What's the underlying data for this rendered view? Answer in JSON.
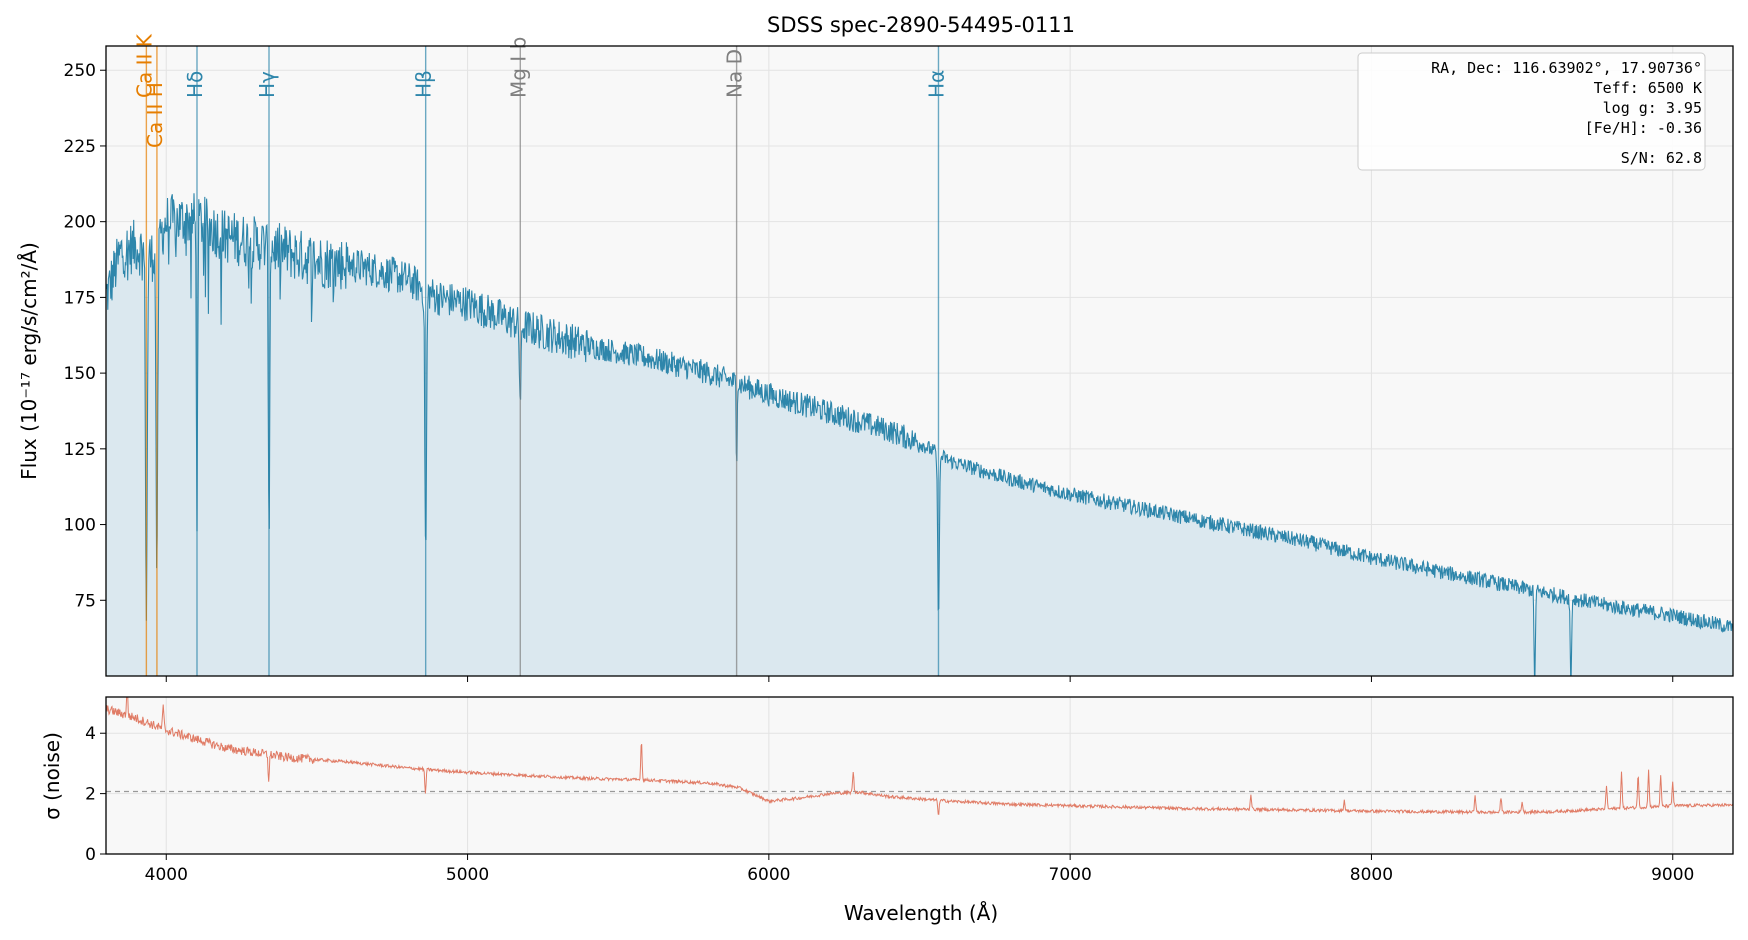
{
  "figure": {
    "title": "SDSS spec-2890-54495-0111",
    "xlabel": "Wavelength (Å)"
  },
  "info_box": {
    "lines": [
      "RA, Dec: 116.63902°, 17.90736°",
      "Teff: 6500 K",
      "log g: 3.95",
      "[Fe/H]: -0.36",
      "S/N: 62.8"
    ]
  },
  "colors": {
    "flux": "#2e86ab",
    "flux_fill": "#dbe8ef",
    "noise": "#e07b65",
    "panel_bg": "#f8f8f8",
    "balmer": "#2e86ab",
    "calcium": "#e67e00",
    "metal": "#7f7f7f"
  },
  "chart_data": [
    {
      "type": "line",
      "panel": "flux",
      "ylabel": "Flux (10⁻¹⁷ erg/s/cm²/Å)",
      "xlim": [
        3800,
        9200
      ],
      "ylim": [
        50,
        258
      ],
      "xticks": [
        4000,
        5000,
        6000,
        7000,
        8000,
        9000
      ],
      "yticks": [
        75,
        100,
        125,
        150,
        175,
        200,
        225,
        250
      ],
      "grid": true,
      "fill_under": true,
      "continuum_points": {
        "x": [
          3800,
          3850,
          3900,
          3950,
          4000,
          4100,
          4200,
          4300,
          4400,
          4500,
          4600,
          4700,
          4800,
          4900,
          5000,
          5200,
          5400,
          5600,
          5800,
          6000,
          6200,
          6400,
          6500,
          6600,
          6800,
          7000,
          7200,
          7400,
          7600,
          7800,
          8000,
          8200,
          8400,
          8600,
          8800,
          9000,
          9200
        ],
        "y": [
          175,
          190,
          192,
          188,
          200,
          201,
          195,
          193,
          190,
          187,
          186,
          184,
          181,
          175,
          173,
          165,
          159,
          155,
          150,
          143,
          137,
          131,
          127,
          121,
          115,
          110,
          106,
          102,
          98,
          94,
          89,
          85,
          81,
          77,
          73,
          70,
          66
        ]
      },
      "absorption_features": [
        {
          "x": 3934,
          "depth": 120,
          "width": 4
        },
        {
          "x": 3969,
          "depth": 110,
          "width": 4
        },
        {
          "x": 4102,
          "depth": 95,
          "width": 3
        },
        {
          "x": 4341,
          "depth": 100,
          "width": 3
        },
        {
          "x": 4861,
          "depth": 88,
          "width": 4
        },
        {
          "x": 5175,
          "depth": 25,
          "width": 4
        },
        {
          "x": 5893,
          "depth": 28,
          "width": 2
        },
        {
          "x": 6563,
          "depth": 52,
          "width": 4
        },
        {
          "x": 8542,
          "depth": 32,
          "width": 3
        },
        {
          "x": 8662,
          "depth": 30,
          "width": 3
        }
      ],
      "vlines": [
        {
          "label": "Ca II K",
          "x": 3934,
          "group": "calcium"
        },
        {
          "label": "Ca II H",
          "x": 3969,
          "group": "calcium"
        },
        {
          "label": "Hδ",
          "x": 4102,
          "group": "balmer"
        },
        {
          "label": "Hγ",
          "x": 4341,
          "group": "balmer"
        },
        {
          "label": "Hβ",
          "x": 4861,
          "group": "balmer"
        },
        {
          "label": "Mg I b",
          "x": 5175,
          "group": "metal"
        },
        {
          "label": "Na D",
          "x": 5893,
          "group": "metal"
        },
        {
          "label": "Hα",
          "x": 6563,
          "group": "balmer"
        }
      ]
    },
    {
      "type": "line",
      "panel": "noise",
      "ylabel": "σ (noise)",
      "xlim": [
        3800,
        9200
      ],
      "ylim": [
        0,
        5.2
      ],
      "xticks": [
        4000,
        5000,
        6000,
        7000,
        8000,
        9000
      ],
      "yticks": [
        0,
        2,
        4
      ],
      "grid": true,
      "reference_line": 2.07,
      "baseline_points": {
        "x": [
          3800,
          3900,
          4000,
          4200,
          4400,
          4600,
          4800,
          5000,
          5200,
          5400,
          5600,
          5800,
          5900,
          6000,
          6100,
          6200,
          6300,
          6400,
          6600,
          6800,
          7000,
          7200,
          7400,
          7600,
          7800,
          8000,
          8200,
          8400,
          8600,
          8800,
          9000,
          9200
        ],
        "y": [
          4.8,
          4.5,
          4.1,
          3.5,
          3.2,
          3.05,
          2.85,
          2.7,
          2.6,
          2.5,
          2.45,
          2.35,
          2.2,
          1.75,
          1.85,
          2.0,
          2.05,
          1.9,
          1.75,
          1.65,
          1.6,
          1.55,
          1.5,
          1.48,
          1.45,
          1.42,
          1.4,
          1.38,
          1.4,
          1.5,
          1.6,
          1.62
        ]
      },
      "spikes": [
        {
          "x": 3870,
          "h": 0.9
        },
        {
          "x": 3990,
          "h": 0.7
        },
        {
          "x": 4340,
          "h": -0.8
        },
        {
          "x": 4860,
          "h": -0.8
        },
        {
          "x": 5577,
          "h": 1.3
        },
        {
          "x": 6280,
          "h": 0.7
        },
        {
          "x": 6563,
          "h": -0.5
        },
        {
          "x": 7600,
          "h": 0.5
        },
        {
          "x": 7910,
          "h": 0.35
        },
        {
          "x": 8344,
          "h": 0.6
        },
        {
          "x": 8430,
          "h": 0.5
        },
        {
          "x": 8500,
          "h": 0.35
        },
        {
          "x": 8780,
          "h": 0.8
        },
        {
          "x": 8830,
          "h": 1.2
        },
        {
          "x": 8885,
          "h": 1.1
        },
        {
          "x": 8920,
          "h": 1.2
        },
        {
          "x": 8960,
          "h": 1.0
        },
        {
          "x": 9000,
          "h": 0.8
        }
      ]
    }
  ]
}
